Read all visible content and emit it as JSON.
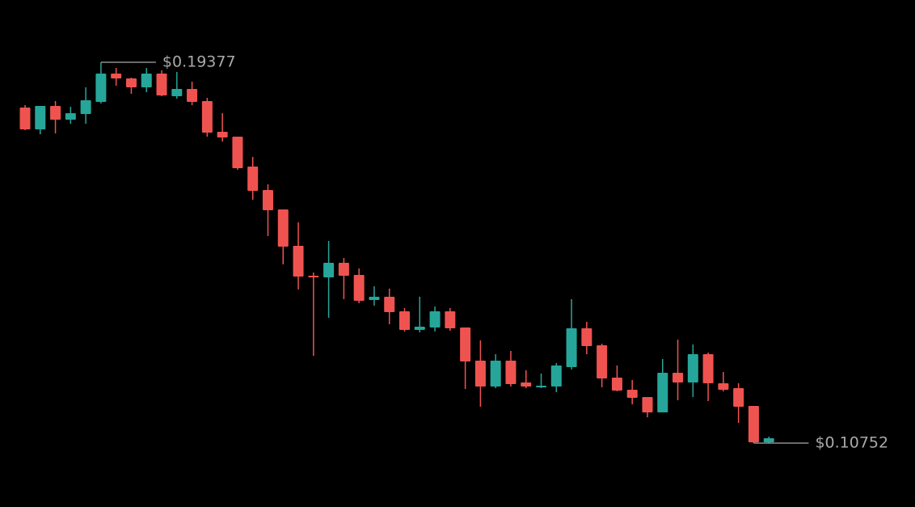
{
  "chart_data": {
    "type": "candlestick",
    "up_color": "#26a69a",
    "down_color": "#ef5350",
    "open": [
      0.18352,
      0.17857,
      0.18388,
      0.18077,
      0.18205,
      0.1848,
      0.19121,
      0.19011,
      0.18809,
      0.19121,
      0.18608,
      0.18773,
      0.18498,
      0.17802,
      0.17692,
      0.17015,
      0.16484,
      0.16044,
      0.1522,
      0.14543,
      0.14506,
      0.14836,
      0.14561,
      0.13993,
      0.14067,
      0.13737,
      0.13316,
      0.13371,
      0.13737,
      0.13371,
      0.1262,
      0.12034,
      0.1262,
      0.12125,
      0.12016,
      0.12034,
      0.12473,
      0.13352,
      0.12968,
      0.12235,
      0.11961,
      0.11796,
      0.11448,
      0.12345,
      0.12125,
      0.12766,
      0.12107,
      0.11997,
      0.11594,
      0.1077
    ],
    "high": [
      0.18406,
      0.18388,
      0.18498,
      0.1837,
      0.18809,
      0.19377,
      0.19249,
      0.19029,
      0.19249,
      0.19194,
      0.19157,
      0.18938,
      0.18571,
      0.18223,
      0.17692,
      0.17234,
      0.16612,
      0.16044,
      0.15751,
      0.14616,
      0.1533,
      0.14945,
      0.14707,
      0.14305,
      0.1425,
      0.1381,
      0.14067,
      0.13847,
      0.1381,
      0.13371,
      0.13078,
      0.12766,
      0.1284,
      0.124,
      0.12327,
      0.12565,
      0.14012,
      0.13499,
      0.13004,
      0.1251,
      0.1218,
      0.11796,
      0.12656,
      0.13096,
      0.12986,
      0.12803,
      0.12364,
      0.12107,
      0.11594,
      0.10899
    ],
    "low": [
      0.17839,
      0.17747,
      0.17766,
      0.17985,
      0.17985,
      0.18443,
      0.18846,
      0.18663,
      0.18699,
      0.18608,
      0.18553,
      0.18406,
      0.17692,
      0.17582,
      0.16942,
      0.16264,
      0.1544,
      0.14799,
      0.14231,
      0.1273,
      0.1359,
      0.14012,
      0.1392,
      0.13865,
      0.13444,
      0.13279,
      0.13261,
      0.13279,
      0.13297,
      0.11979,
      0.11576,
      0.11997,
      0.12034,
      0.11997,
      0.11997,
      0.11906,
      0.12418,
      0.12766,
      0.12016,
      0.11924,
      0.11631,
      0.11338,
      0.11448,
      0.11723,
      0.11796,
      0.11704,
      0.11924,
      0.1121,
      0.10752,
      0.10752
    ],
    "close": [
      0.17857,
      0.18388,
      0.18077,
      0.18223,
      0.18516,
      0.19121,
      0.19011,
      0.18809,
      0.19121,
      0.18626,
      0.18773,
      0.1848,
      0.17784,
      0.17674,
      0.16978,
      0.16465,
      0.16026,
      0.15202,
      0.14524,
      0.14506,
      0.14836,
      0.14543,
      0.13975,
      0.14067,
      0.13719,
      0.13316,
      0.13389,
      0.13737,
      0.13352,
      0.12602,
      0.12034,
      0.1262,
      0.12089,
      0.12034,
      0.12052,
      0.1251,
      0.13352,
      0.12949,
      0.12217,
      0.11942,
      0.11778,
      0.11448,
      0.12345,
      0.12125,
      0.12766,
      0.12107,
      0.11961,
      0.11576,
      0.1077,
      0.10862
    ],
    "annotations": [
      {
        "label": "$0.19377",
        "value": 0.19377
      },
      {
        "label": "$0.10752",
        "value": 0.10752
      }
    ]
  }
}
